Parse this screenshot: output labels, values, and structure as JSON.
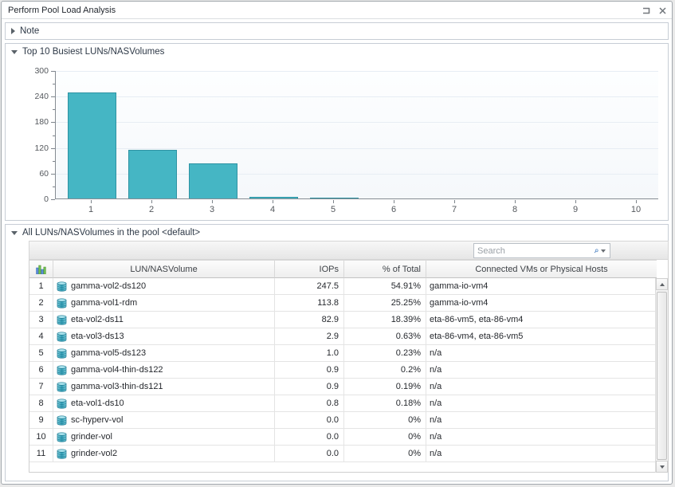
{
  "window": {
    "title": "Perform Pool Load Analysis"
  },
  "note": {
    "label": "Note"
  },
  "chart_section": {
    "title": "Top 10 Busiest LUNs/NASVolumes"
  },
  "chart_data": {
    "type": "bar",
    "title": "Top 10 Busiest LUNs/NASVolumes",
    "categories": [
      "1",
      "2",
      "3",
      "4",
      "5",
      "6",
      "7",
      "8",
      "9",
      "10"
    ],
    "values": [
      247.5,
      113.8,
      82.9,
      2.9,
      1.0,
      0.9,
      0.9,
      0.8,
      0.0,
      0.0
    ],
    "xlabel": "",
    "ylabel": "",
    "ylim": [
      0,
      300
    ],
    "yticks": [
      0,
      60,
      120,
      180,
      240,
      300
    ],
    "yminor_step": 30,
    "grid": "horizontal-major",
    "legend": "none",
    "bar_color": "#45b6c4",
    "bar_border": "#2e93a3"
  },
  "table_section": {
    "title": "All LUNs/NASVolumes in the pool <default>",
    "search_placeholder": "Search",
    "columns": [
      "LUN/NASVolume",
      "IOPs",
      "% of Total",
      "Connected VMs or Physical Hosts"
    ],
    "rows": [
      {
        "rank": "1",
        "name": "gamma-vol2-ds120",
        "iops": "247.5",
        "pct": "54.91%",
        "hosts": "gamma-io-vm4"
      },
      {
        "rank": "2",
        "name": "gamma-vol1-rdm",
        "iops": "113.8",
        "pct": "25.25%",
        "hosts": "gamma-io-vm4"
      },
      {
        "rank": "3",
        "name": "eta-vol2-ds11",
        "iops": "82.9",
        "pct": "18.39%",
        "hosts": "eta-86-vm5, eta-86-vm4"
      },
      {
        "rank": "4",
        "name": "eta-vol3-ds13",
        "iops": "2.9",
        "pct": "0.63%",
        "hosts": "eta-86-vm4, eta-86-vm5"
      },
      {
        "rank": "5",
        "name": "gamma-vol5-ds123",
        "iops": "1.0",
        "pct": "0.23%",
        "hosts": "n/a"
      },
      {
        "rank": "6",
        "name": "gamma-vol4-thin-ds122",
        "iops": "0.9",
        "pct": "0.2%",
        "hosts": "n/a"
      },
      {
        "rank": "7",
        "name": "gamma-vol3-thin-ds121",
        "iops": "0.9",
        "pct": "0.19%",
        "hosts": "n/a"
      },
      {
        "rank": "8",
        "name": "eta-vol1-ds10",
        "iops": "0.8",
        "pct": "0.18%",
        "hosts": "n/a"
      },
      {
        "rank": "9",
        "name": "sc-hyperv-vol",
        "iops": "0.0",
        "pct": "0%",
        "hosts": "n/a"
      },
      {
        "rank": "10",
        "name": "grinder-vol",
        "iops": "0.0",
        "pct": "0%",
        "hosts": "n/a"
      },
      {
        "rank": "11",
        "name": "grinder-vol2",
        "iops": "0.0",
        "pct": "0%",
        "hosts": "n/a"
      }
    ]
  }
}
